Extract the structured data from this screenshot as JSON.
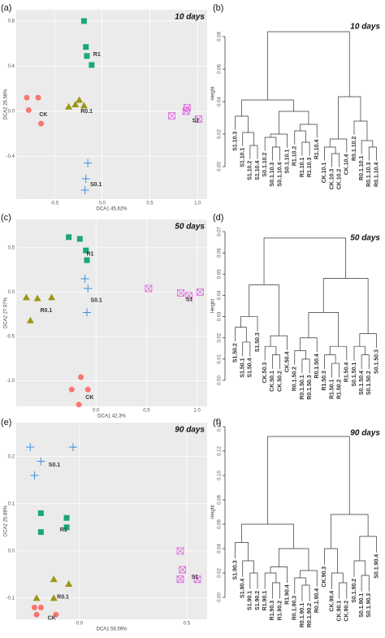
{
  "chart_data": [
    {
      "type": "scatter",
      "panel": "(a)",
      "title": "10 days",
      "xlabel": "DCA1  45.62%",
      "ylabel": "DCA2  26.56%",
      "xlim": [
        -0.9,
        1.1
      ],
      "ylim": [
        -0.78,
        0.9
      ],
      "grid": true,
      "xticks": [
        -0.5,
        {
          "value": 0,
          "label": "0.0"
        },
        0.5,
        {
          "value": 1,
          "label": "1.0"
        }
      ],
      "yticks": [
        0.8,
        0.4,
        {
          "value": 0,
          "label": "0.0"
        },
        -0.4
      ],
      "series": [
        {
          "name": "R1",
          "color": "#1aa874",
          "marker": "square",
          "x": [
            -0.19,
            -0.17,
            -0.16,
            -0.11
          ],
          "values": [
            0.8,
            0.57,
            0.49,
            0.41
          ]
        },
        {
          "name": "CK",
          "color": "#f8766d",
          "marker": "circle",
          "x": [
            -0.79,
            -0.67,
            -0.77,
            -0.64
          ],
          "values": [
            0.12,
            0.12,
            0.01,
            -0.11
          ]
        },
        {
          "name": "R0.1",
          "color": "#9c9616",
          "marker": "triangle",
          "x": [
            -0.35,
            -0.28,
            -0.24,
            -0.19
          ],
          "values": [
            0.04,
            0.06,
            0.1,
            0.05
          ]
        },
        {
          "name": "S0.1",
          "color": "#3d8fe0",
          "marker": "plus",
          "x": [
            -0.15,
            -0.17,
            -0.18
          ],
          "values": [
            -0.46,
            -0.6,
            -0.7
          ]
        },
        {
          "name": "S1",
          "color": "#dd5ddd",
          "marker": "boxx",
          "x": [
            0.73,
            0.88,
            0.89,
            1.01
          ],
          "values": [
            -0.04,
            0,
            0.03,
            -0.07
          ]
        }
      ]
    },
    {
      "type": "dendrogram",
      "panel": "(b)",
      "title": "10 days",
      "ylabel": "Height",
      "ylim": [
        0,
        0.09
      ],
      "yticks": [
        {
          "value": 0,
          "label": "0.00"
        },
        0.02,
        0.04,
        0.06,
        0.08
      ],
      "leaves": [
        {
          "label": "S1.10.3",
          "color": "#c732c7"
        },
        {
          "label": "S1.10.1",
          "color": "#c732c7"
        },
        {
          "label": "S1.10.2",
          "color": "#c732c7"
        },
        {
          "label": "S1.10.4",
          "color": "#c732c7"
        },
        {
          "label": "S0.1.10.2",
          "color": "#1f6fd6"
        },
        {
          "label": "S0.1.10.3",
          "color": "#1f6fd6"
        },
        {
          "label": "S0.1.10.4",
          "color": "#1f6fd6"
        },
        {
          "label": "S0.1.10.1",
          "color": "#1f6fd6"
        },
        {
          "label": "R1.10.2",
          "color": "#1a8a3a"
        },
        {
          "label": "R1.10.1",
          "color": "#1a8a3a"
        },
        {
          "label": "R1.10.3",
          "color": "#1a8a3a"
        },
        {
          "label": "R1.10.4",
          "color": "#1a8a3a"
        },
        {
          "label": "CK.10.1",
          "color": "#e01b1b"
        },
        {
          "label": "CK.10.3",
          "color": "#e01b1b"
        },
        {
          "label": "CK.10.2",
          "color": "#e01b1b"
        },
        {
          "label": "CK.10.4",
          "color": "#e01b1b"
        },
        {
          "label": "R0.1.10.2",
          "color": "#a09a20"
        },
        {
          "label": "R0.1.10.1",
          "color": "#a09a20"
        },
        {
          "label": "R0.1.10.3",
          "color": "#a09a20"
        },
        {
          "label": "R0.1.10.4",
          "color": "#a09a20"
        }
      ],
      "merges": [
        [
          2,
          3,
          0.013
        ],
        [
          1,
          20,
          0.021
        ],
        [
          0,
          21,
          0.031
        ],
        [
          5,
          6,
          0.012
        ],
        [
          4,
          23,
          0.018
        ],
        [
          24,
          7,
          0.02
        ],
        [
          9,
          10,
          0.015
        ],
        [
          8,
          26,
          0.022
        ],
        [
          27,
          11,
          0.026
        ],
        [
          25,
          28,
          0.034
        ],
        [
          22,
          29,
          0.041
        ],
        [
          13,
          14,
          0.008
        ],
        [
          12,
          31,
          0.012
        ],
        [
          32,
          15,
          0.017
        ],
        [
          18,
          19,
          0.012
        ],
        [
          17,
          34,
          0.016
        ],
        [
          16,
          35,
          0.028
        ],
        [
          33,
          36,
          0.043
        ],
        [
          30,
          37,
          0.083
        ]
      ]
    },
    {
      "type": "scatter",
      "panel": "(c)",
      "title": "50 days",
      "xlabel": "DCA1  42.3%",
      "ylabel": "DCA2  27.97%",
      "xlim": [
        -0.79,
        1.1
      ],
      "ylim": [
        -1.29,
        0.82
      ],
      "grid": true,
      "xticks": [
        {
          "value": 0,
          "label": "0.0"
        },
        0.5,
        {
          "value": 1,
          "label": "1.0"
        }
      ],
      "yticks": [
        0.5,
        {
          "value": 0,
          "label": "0.0"
        },
        -0.5,
        {
          "value": -1,
          "label": "-1.0"
        }
      ],
      "series": [
        {
          "name": "R1",
          "color": "#1aa874",
          "marker": "square",
          "x": [
            -0.27,
            -0.16,
            -0.1,
            -0.09
          ],
          "values": [
            0.62,
            0.6,
            0.47,
            0.36
          ]
        },
        {
          "name": "S0.1",
          "color": "#3d8fe0",
          "marker": "plus",
          "x": [
            -0.11,
            -0.08,
            -0.09
          ],
          "values": [
            0.15,
            0.04,
            -0.23
          ]
        },
        {
          "name": "R0.1",
          "color": "#9c9616",
          "marker": "triangle",
          "x": [
            -0.69,
            -0.58,
            -0.44,
            -0.65
          ],
          "values": [
            -0.06,
            -0.07,
            -0.06,
            -0.32
          ]
        },
        {
          "name": "S1",
          "color": "#dd5ddd",
          "marker": "boxx",
          "x": [
            0.52,
            0.84,
            0.92,
            1.03
          ],
          "values": [
            0.04,
            -0.01,
            -0.04,
            0
          ]
        },
        {
          "name": "CK",
          "color": "#f8766d",
          "marker": "circle",
          "x": [
            -0.15,
            -0.24,
            -0.08,
            -0.17
          ],
          "values": [
            -0.96,
            -1.1,
            -1.1,
            -1.27
          ]
        }
      ]
    },
    {
      "type": "dendrogram",
      "panel": "(d)",
      "title": "50 days",
      "ylabel": "Height",
      "ylim": [
        0,
        0.07
      ],
      "yticks": [
        {
          "value": 0,
          "label": "0.00"
        },
        0.01,
        0.02,
        0.03,
        0.04,
        0.05,
        0.06,
        0.07
      ],
      "leaves": [
        {
          "label": "S1.50.2",
          "color": "#c732c7"
        },
        {
          "label": "S1.50.1",
          "color": "#c732c7"
        },
        {
          "label": "S1.50.4",
          "color": "#c732c7"
        },
        {
          "label": "S1.50.3",
          "color": "#c732c7"
        },
        {
          "label": "CK.50.3",
          "color": "#e01b1b"
        },
        {
          "label": "CK.50.1",
          "color": "#e01b1b"
        },
        {
          "label": "CK.50.2",
          "color": "#e01b1b"
        },
        {
          "label": "CK.50.4",
          "color": "#e01b1b"
        },
        {
          "label": "R0.1.50.2",
          "color": "#a09a20"
        },
        {
          "label": "R0.1.50.1",
          "color": "#a09a20"
        },
        {
          "label": "R0.1.50.3",
          "color": "#a09a20"
        },
        {
          "label": "R0.1.50.4",
          "color": "#a09a20"
        },
        {
          "label": "R1.50.3",
          "color": "#1a8a3a"
        },
        {
          "label": "R1.50.1",
          "color": "#1a8a3a"
        },
        {
          "label": "R1.50.2",
          "color": "#1a8a3a"
        },
        {
          "label": "R1.50.4",
          "color": "#1a8a3a"
        },
        {
          "label": "S0.1.50.1",
          "color": "#1f6fd6"
        },
        {
          "label": "S0.1.50.4",
          "color": "#1f6fd6"
        },
        {
          "label": "S0.1.50.2",
          "color": "#1f6fd6"
        },
        {
          "label": "S0.1.50.3",
          "color": "#1f6fd6"
        }
      ],
      "merges": [
        [
          1,
          2,
          0.018
        ],
        [
          0,
          20,
          0.025
        ],
        [
          21,
          3,
          0.03
        ],
        [
          5,
          6,
          0.012
        ],
        [
          4,
          23,
          0.016
        ],
        [
          24,
          7,
          0.021
        ],
        [
          22,
          25,
          0.045
        ],
        [
          9,
          10,
          0.01
        ],
        [
          8,
          27,
          0.014
        ],
        [
          28,
          11,
          0.02
        ],
        [
          13,
          14,
          0.008
        ],
        [
          12,
          30,
          0.012
        ],
        [
          31,
          15,
          0.016
        ],
        [
          29,
          32,
          0.032
        ],
        [
          17,
          18,
          0.012
        ],
        [
          16,
          34,
          0.016
        ],
        [
          35,
          19,
          0.022
        ],
        [
          33,
          36,
          0.048
        ],
        [
          26,
          37,
          0.067
        ]
      ]
    },
    {
      "type": "scatter",
      "panel": "(e)",
      "title": "90 days",
      "xlabel": "DCA1  58.56%",
      "ylabel": "DCA2  25.88%",
      "xlim": [
        -0.295,
        0.595
      ],
      "ylim": [
        -0.145,
        0.272
      ],
      "grid": true,
      "xticks": [
        {
          "value": 0,
          "label": "0.0"
        },
        0.5
      ],
      "yticks": [
        0.2,
        0.1,
        {
          "value": 0,
          "label": "0.0"
        },
        -0.1
      ],
      "series": [
        {
          "name": "S0.1",
          "color": "#3d8fe0",
          "marker": "plus",
          "x": [
            -0.23,
            -0.03,
            -0.18,
            -0.21
          ],
          "values": [
            0.22,
            0.22,
            0.19,
            0.16
          ]
        },
        {
          "name": "R1",
          "color": "#1aa874",
          "marker": "square",
          "x": [
            -0.18,
            -0.06,
            -0.06,
            -0.18
          ],
          "values": [
            0.08,
            0.07,
            0.05,
            0.04
          ]
        },
        {
          "name": "S1",
          "color": "#dd5ddd",
          "marker": "boxx",
          "x": [
            0.47,
            0.48,
            0.47,
            0.55
          ],
          "values": [
            0,
            -0.04,
            -0.06,
            -0.06
          ]
        },
        {
          "name": "R0.1",
          "color": "#9c9616",
          "marker": "triangle",
          "x": [
            -0.2,
            -0.12,
            -0.05,
            -0.12
          ],
          "values": [
            -0.1,
            -0.06,
            -0.07,
            -0.1
          ]
        },
        {
          "name": "CK",
          "color": "#f8766d",
          "marker": "circle",
          "x": [
            -0.21,
            -0.18,
            -0.2,
            -0.11
          ],
          "values": [
            -0.12,
            -0.12,
            -0.135,
            -0.135
          ]
        }
      ]
    },
    {
      "type": "dendrogram",
      "panel": "(f)",
      "title": "90 days",
      "ylabel": "Height",
      "ylim": [
        0,
        0.14
      ],
      "yticks": [
        {
          "value": 0,
          "label": "0.00"
        },
        0.02,
        0.04,
        0.06,
        0.08,
        {
          "value": 0.1,
          "label": "0.10"
        },
        0.12,
        0.14
      ],
      "leaves": [
        {
          "label": "S1.90.3",
          "color": "#c732c7"
        },
        {
          "label": "S1.90.4",
          "color": "#c732c7"
        },
        {
          "label": "S1.90.1",
          "color": "#c732c7"
        },
        {
          "label": "S1.90.2",
          "color": "#c732c7"
        },
        {
          "label": "R1.90.1",
          "color": "#1a8a3a"
        },
        {
          "label": "R1.90.3",
          "color": "#1a8a3a"
        },
        {
          "label": "R1.90.2",
          "color": "#1a8a3a"
        },
        {
          "label": "R1.90.4",
          "color": "#1a8a3a"
        },
        {
          "label": "R0.1.90.3",
          "color": "#a09a20"
        },
        {
          "label": "R0.1.90.1",
          "color": "#a09a20"
        },
        {
          "label": "R0.1.90.2",
          "color": "#a09a20"
        },
        {
          "label": "R0.1.90.4",
          "color": "#a09a20"
        },
        {
          "label": "CK.90.3",
          "color": "#e01b1b"
        },
        {
          "label": "CK.90.4",
          "color": "#e01b1b"
        },
        {
          "label": "CK.90.1",
          "color": "#e01b1b"
        },
        {
          "label": "CK.90.2",
          "color": "#e01b1b"
        },
        {
          "label": "S0.1.90.2",
          "color": "#1f6fd6"
        },
        {
          "label": "S0.1.90.1",
          "color": "#1f6fd6"
        },
        {
          "label": "S0.1.90.3",
          "color": "#1f6fd6"
        },
        {
          "label": "S0.1.90.4",
          "color": "#1f6fd6"
        }
      ],
      "merges": [
        [
          2,
          3,
          0.02
        ],
        [
          1,
          20,
          0.03
        ],
        [
          0,
          21,
          0.045
        ],
        [
          5,
          6,
          0.012
        ],
        [
          4,
          23,
          0.02
        ],
        [
          24,
          7,
          0.025
        ],
        [
          9,
          10,
          0.01
        ],
        [
          8,
          26,
          0.016
        ],
        [
          27,
          11,
          0.022
        ],
        [
          25,
          28,
          0.04
        ],
        [
          22,
          29,
          0.06
        ],
        [
          14,
          15,
          0.012
        ],
        [
          13,
          31,
          0.02
        ],
        [
          12,
          32,
          0.04
        ],
        [
          17,
          18,
          0.018
        ],
        [
          16,
          34,
          0.03
        ],
        [
          35,
          19,
          0.05
        ],
        [
          33,
          36,
          0.068
        ],
        [
          30,
          37,
          0.132
        ]
      ]
    }
  ]
}
